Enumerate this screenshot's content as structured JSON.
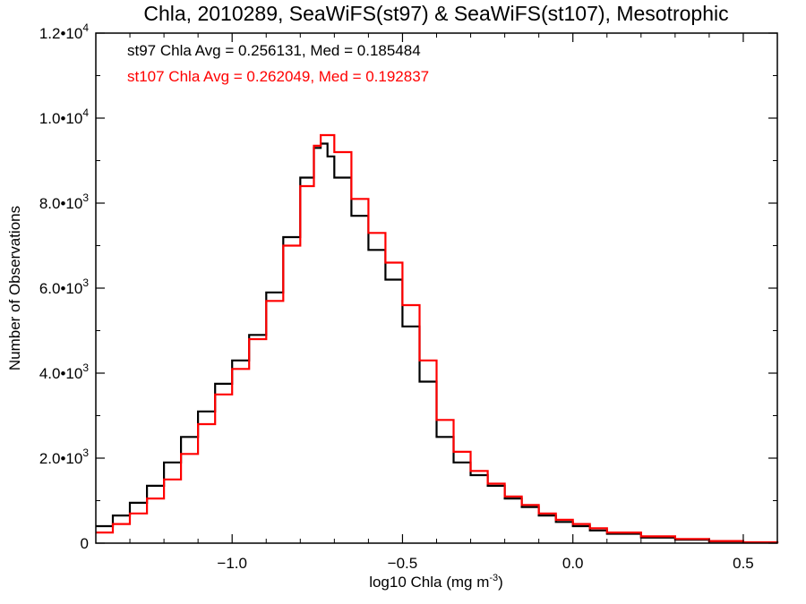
{
  "chart_data": {
    "type": "line",
    "title": "Chla, 2010289, SeaWiFS(st97) & SeaWiFS(st107), Mesotrophic",
    "xlabel": "log10 Chla (mg m",
    "xlabel_sup": "-3",
    "xlabel_end": ")",
    "ylabel": "Number of Observations",
    "xlim": [
      -1.4,
      0.6
    ],
    "ylim": [
      0,
      12000
    ],
    "x_ticks": [
      {
        "value": -1.0,
        "label": "−1.0"
      },
      {
        "value": -0.5,
        "label": "−0.5"
      },
      {
        "value": 0.0,
        "label": "0.0"
      },
      {
        "value": 0.5,
        "label": "0.5"
      }
    ],
    "y_ticks": [
      {
        "value": 0,
        "mantissa": "0",
        "exp": ""
      },
      {
        "value": 2000,
        "mantissa": "2.0•10",
        "exp": "3"
      },
      {
        "value": 4000,
        "mantissa": "4.0•10",
        "exp": "3"
      },
      {
        "value": 6000,
        "mantissa": "6.0•10",
        "exp": "3"
      },
      {
        "value": 8000,
        "mantissa": "8.0•10",
        "exp": "3"
      },
      {
        "value": 10000,
        "mantissa": "1.0•10",
        "exp": "4"
      },
      {
        "value": 12000,
        "mantissa": "1.2•10",
        "exp": "4"
      }
    ],
    "annotations": [
      {
        "text": "st97 Chla Avg = 0.256131, Med = 0.185484",
        "color": "#000000"
      },
      {
        "text": "st107 Chla Avg = 0.262049, Med = 0.192837",
        "color": "#ff0000"
      }
    ],
    "grid": false,
    "series": [
      {
        "color": "#000000",
        "style": "step",
        "x": [
          -1.4,
          -1.35,
          -1.3,
          -1.25,
          -1.2,
          -1.15,
          -1.1,
          -1.05,
          -1.0,
          -0.95,
          -0.9,
          -0.85,
          -0.8,
          -0.76,
          -0.74,
          -0.72,
          -0.7,
          -0.65,
          -0.6,
          -0.55,
          -0.5,
          -0.45,
          -0.4,
          -0.35,
          -0.3,
          -0.25,
          -0.2,
          -0.15,
          -0.1,
          -0.05,
          0.0,
          0.05,
          0.1,
          0.2,
          0.3,
          0.4,
          0.5,
          0.6
        ],
        "y": [
          400,
          650,
          950,
          1350,
          1900,
          2500,
          3100,
          3750,
          4300,
          4900,
          5900,
          7200,
          8600,
          9300,
          9400,
          9100,
          8600,
          7700,
          6900,
          6200,
          5100,
          3800,
          2500,
          1900,
          1600,
          1350,
          1050,
          850,
          650,
          500,
          400,
          300,
          220,
          130,
          80,
          40,
          15,
          0
        ]
      },
      {
        "color": "#ff0000",
        "style": "step",
        "x": [
          -1.4,
          -1.35,
          -1.3,
          -1.25,
          -1.2,
          -1.15,
          -1.1,
          -1.05,
          -1.0,
          -0.95,
          -0.9,
          -0.85,
          -0.8,
          -0.76,
          -0.74,
          -0.72,
          -0.7,
          -0.65,
          -0.6,
          -0.55,
          -0.5,
          -0.45,
          -0.4,
          -0.35,
          -0.3,
          -0.25,
          -0.2,
          -0.15,
          -0.1,
          -0.05,
          0.0,
          0.05,
          0.1,
          0.2,
          0.3,
          0.4,
          0.5,
          0.6
        ],
        "y": [
          250,
          450,
          700,
          1050,
          1500,
          2100,
          2800,
          3500,
          4100,
          4800,
          5700,
          7000,
          8400,
          9350,
          9600,
          9600,
          9200,
          8100,
          7300,
          6600,
          5600,
          4300,
          2900,
          2150,
          1700,
          1400,
          1100,
          900,
          700,
          550,
          450,
          350,
          250,
          160,
          100,
          50,
          20,
          0
        ]
      }
    ]
  }
}
